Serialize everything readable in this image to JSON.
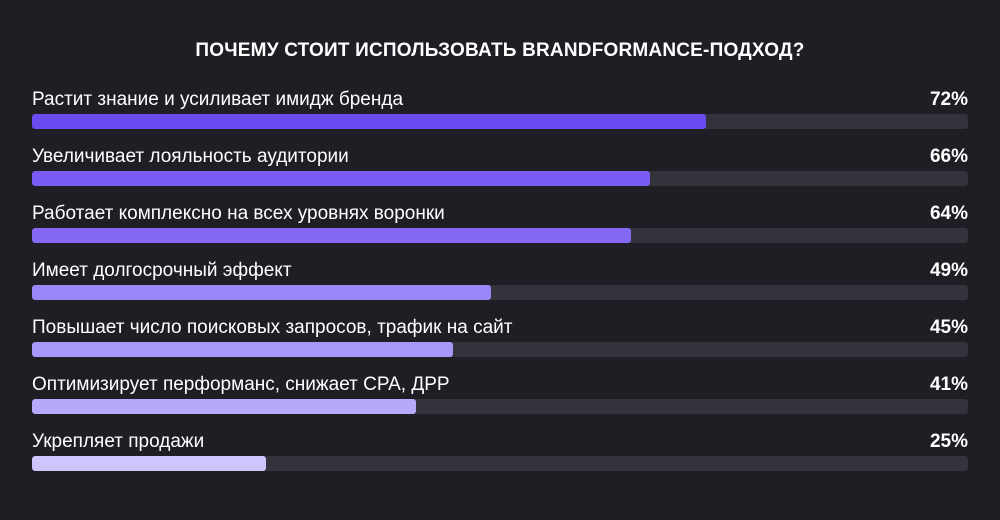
{
  "chart_data": {
    "type": "bar",
    "orientation": "horizontal",
    "title": "ПОЧЕМУ СТОИТ ИСПОЛЬЗОВАТЬ BRANDFORMANCE-ПОДХОД?",
    "categories": [
      "Растит знание и усиливает имидж бренда",
      "Увеличивает лояльность аудитории",
      "Работает комплексно на всех уровнях воронки",
      "Имеет долгосрочный эффект",
      "Повышает число поисковых запросов, трафик на сайт",
      "Оптимизирует перформанс, снижает CPA, ДРР",
      "Укрепляет продажи"
    ],
    "values": [
      72,
      66,
      64,
      49,
      45,
      41,
      25
    ],
    "value_labels": [
      "72%",
      "66%",
      "64%",
      "49%",
      "45%",
      "41%",
      "25%"
    ],
    "xlim": [
      0,
      100
    ],
    "grid": false,
    "legend": "none",
    "colors": {
      "background": "#1e1e24",
      "track": "#33333b",
      "bars": [
        "#6a4bf2",
        "#7a5cf5",
        "#8569f6",
        "#9b87f8",
        "#a898f9",
        "#b6a8fa",
        "#cfc4fc"
      ]
    }
  }
}
